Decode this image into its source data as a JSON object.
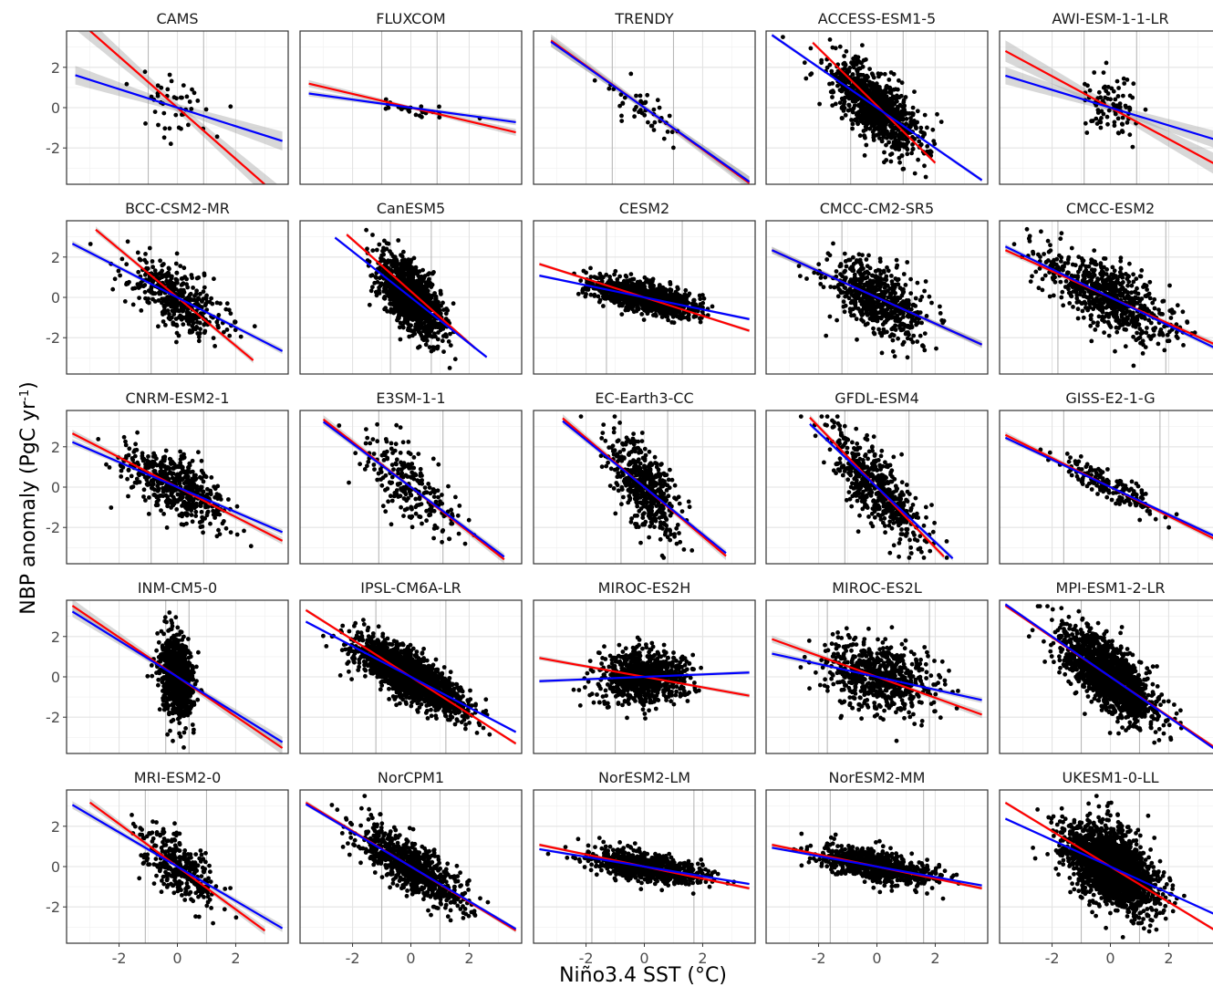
{
  "figure": {
    "ylabel_main": "NBP anomaly (PgC yr",
    "ylabel_sup": "-1",
    "ylabel_close": ")",
    "xlabel": "Niño3.4 SST (°C)"
  },
  "chart_data": {
    "type": "scatter",
    "layout": "5x5 facet grid",
    "xlim": [
      -3.8,
      3.8
    ],
    "ylim": [
      -3.8,
      3.8
    ],
    "x_ticks": [
      -2,
      0,
      2
    ],
    "y_ticks": [
      -2,
      0,
      2
    ],
    "x_tick_labels": [
      "-2",
      "0",
      "2"
    ],
    "y_tick_labels": [
      "-2",
      "0",
      "2"
    ],
    "grid": true,
    "line_colors": {
      "red": "#ff0000",
      "blue": "#0000ff"
    },
    "panels": [
      {
        "title": "CAMS",
        "n": 45,
        "xsd": 0.7,
        "noise": 0.9,
        "red": [
          -1.27,
          0.0
        ],
        "blue": [
          -0.46,
          0.0
        ],
        "red_range": [
          -3.5,
          3.6
        ],
        "blue_range": [
          -3.5,
          3.6
        ],
        "band": 0.55,
        "vlines": [
          -1.0,
          0.9
        ]
      },
      {
        "title": "FLUXCOM",
        "n": 25,
        "xsd": 0.8,
        "noise": 0.18,
        "red": [
          -0.34,
          0.0
        ],
        "blue": [
          -0.2,
          0.0
        ],
        "red_range": [
          -3.5,
          3.6
        ],
        "blue_range": [
          -3.5,
          3.6
        ],
        "band": 0.15,
        "vlines": [
          -1.0,
          0.9
        ]
      },
      {
        "title": "TRENDY",
        "n": 45,
        "xsd": 0.7,
        "noise": 0.6,
        "red": [
          -1.04,
          0.0
        ],
        "blue": [
          -1.02,
          0.0
        ],
        "red_range": [
          -3.2,
          3.6
        ],
        "blue_range": [
          -3.2,
          3.6
        ],
        "band": 0.3,
        "vlines": [
          -1.1,
          1.0
        ]
      },
      {
        "title": "ACCESS-ESM1-5",
        "n": 1000,
        "xsd": 0.75,
        "noise": 0.8,
        "red": [
          -1.42,
          0.1
        ],
        "blue": [
          -1.0,
          0.0
        ],
        "red_range": [
          -2.2,
          2.0
        ],
        "blue_range": [
          -3.6,
          3.6
        ],
        "band": 0.08,
        "vlines": [
          -0.9,
          0.9
        ]
      },
      {
        "title": "AWI-ESM-1-1-LR",
        "n": 90,
        "xsd": 0.45,
        "noise": 0.8,
        "red": [
          -0.78,
          0.0
        ],
        "blue": [
          -0.44,
          0.0
        ],
        "red_range": [
          -3.6,
          3.6
        ],
        "blue_range": [
          -3.6,
          3.6
        ],
        "band": 0.5,
        "vlines": [
          -0.9,
          0.9
        ]
      },
      {
        "title": "BCC-CSM2-MR",
        "n": 420,
        "xsd": 0.85,
        "noise": 0.75,
        "red": [
          -1.2,
          0.0
        ],
        "blue": [
          -0.74,
          0.0
        ],
        "red_range": [
          -2.8,
          2.6
        ],
        "blue_range": [
          -3.6,
          3.6
        ],
        "band": 0.15,
        "vlines": [
          -0.9,
          0.9
        ]
      },
      {
        "title": "CanESM5",
        "n": 1200,
        "xsd": 0.55,
        "noise": 0.8,
        "red": [
          -1.28,
          0.3
        ],
        "blue": [
          -1.14,
          0.0
        ],
        "red_range": [
          -2.2,
          2.2
        ],
        "blue_range": [
          -2.6,
          2.6
        ],
        "band": 0.08,
        "vlines": [
          -0.7,
          0.7
        ]
      },
      {
        "title": "CESM2",
        "n": 1100,
        "xsd": 0.9,
        "noise": 0.35,
        "red": [
          -0.46,
          0.0
        ],
        "blue": [
          -0.3,
          0.0
        ],
        "red_range": [
          -3.6,
          3.6
        ],
        "blue_range": [
          -3.6,
          3.6
        ],
        "band": 0.05,
        "vlines": [
          -1.3,
          1.3
        ]
      },
      {
        "title": "CMCC-CM2-SR5",
        "n": 620,
        "xsd": 0.85,
        "noise": 0.85,
        "red": [
          -0.65,
          0.0
        ],
        "blue": [
          -0.65,
          0.0
        ],
        "red_range": [
          -3.6,
          3.6
        ],
        "blue_range": [
          -3.6,
          3.6
        ],
        "band": 0.15,
        "vlines": [
          -1.2,
          1.2
        ]
      },
      {
        "title": "CMCC-ESM2",
        "n": 700,
        "xsd": 1.1,
        "noise": 0.8,
        "red": [
          -0.65,
          0.0
        ],
        "blue": [
          -0.7,
          0.0
        ],
        "red_range": [
          -3.6,
          3.6
        ],
        "blue_range": [
          -3.6,
          3.6
        ],
        "band": 0.12,
        "vlines": [
          -1.8,
          1.9
        ]
      },
      {
        "title": "CNRM-ESM2-1",
        "n": 520,
        "xsd": 0.85,
        "noise": 0.75,
        "red": [
          -0.74,
          0.0
        ],
        "blue": [
          -0.62,
          0.0
        ],
        "red_range": [
          -3.6,
          3.6
        ],
        "blue_range": [
          -3.6,
          3.6
        ],
        "band": 0.15,
        "vlines": [
          -0.9,
          0.9
        ]
      },
      {
        "title": "E3SM-1-1",
        "n": 230,
        "xsd": 0.85,
        "noise": 0.9,
        "red": [
          -1.12,
          0.0
        ],
        "blue": [
          -1.08,
          0.0
        ],
        "red_range": [
          -3.0,
          3.2
        ],
        "blue_range": [
          -3.0,
          3.2
        ],
        "band": 0.2,
        "vlines": [
          -1.1,
          1.1
        ]
      },
      {
        "title": "EC-Earth3-CC",
        "n": 500,
        "xsd": 0.6,
        "noise": 1.0,
        "red": [
          -1.22,
          0.0
        ],
        "blue": [
          -1.17,
          0.0
        ],
        "red_range": [
          -2.8,
          2.8
        ],
        "blue_range": [
          -2.8,
          2.8
        ],
        "band": 0.2,
        "vlines": [
          -0.8,
          0.8
        ]
      },
      {
        "title": "GFDL-ESM4",
        "n": 520,
        "xsd": 0.75,
        "noise": 0.9,
        "red": [
          -1.5,
          0.0
        ],
        "blue": [
          -1.36,
          0.0
        ],
        "red_range": [
          -2.3,
          2.3
        ],
        "blue_range": [
          -2.3,
          2.6
        ],
        "band": 0.15,
        "vlines": [
          -1.1,
          1.1
        ]
      },
      {
        "title": "GISS-E2-1-G",
        "n": 160,
        "xsd": 0.9,
        "noise": 0.35,
        "red": [
          -0.72,
          0.0
        ],
        "blue": [
          -0.68,
          0.0
        ],
        "red_range": [
          -3.6,
          3.6
        ],
        "blue_range": [
          -3.6,
          3.6
        ],
        "band": 0.12,
        "vlines": [
          -1.6,
          1.7
        ]
      },
      {
        "title": "INM-CM5-0",
        "n": 900,
        "xsd": 0.28,
        "noise": 1.0,
        "red": [
          -0.98,
          0.0
        ],
        "blue": [
          -0.9,
          0.0
        ],
        "red_range": [
          -3.6,
          3.6
        ],
        "blue_range": [
          -3.6,
          3.6
        ],
        "band": 0.3,
        "vlines": [
          -0.4,
          0.4
        ]
      },
      {
        "title": "IPSL-CM6A-LR",
        "n": 1800,
        "xsd": 0.9,
        "noise": 0.55,
        "red": [
          -0.92,
          0.0
        ],
        "blue": [
          -0.76,
          0.0
        ],
        "red_range": [
          -3.6,
          3.6
        ],
        "blue_range": [
          -3.6,
          3.6
        ],
        "band": 0.05,
        "vlines": [
          -1.2,
          1.2
        ]
      },
      {
        "title": "MIROC-ES2H",
        "n": 800,
        "xsd": 0.75,
        "noise": 0.65,
        "red": [
          -0.26,
          0.0
        ],
        "blue": [
          0.06,
          0.0
        ],
        "red_range": [
          -3.6,
          3.6
        ],
        "blue_range": [
          -3.6,
          3.6
        ],
        "band": 0.08,
        "vlines": [
          -1.0,
          1.0
        ]
      },
      {
        "title": "MIROC-ES2L",
        "n": 700,
        "xsd": 0.9,
        "noise": 0.85,
        "red": [
          -0.52,
          0.0
        ],
        "blue": [
          -0.32,
          0.0
        ],
        "red_range": [
          -3.6,
          3.6
        ],
        "blue_range": [
          -3.6,
          3.6
        ],
        "band": 0.15,
        "vlines": [
          -1.7,
          1.8
        ]
      },
      {
        "title": "MPI-ESM1-2-LR",
        "n": 1600,
        "xsd": 0.75,
        "noise": 0.8,
        "red": [
          -0.98,
          0.0
        ],
        "blue": [
          -1.0,
          0.0
        ],
        "red_range": [
          -3.6,
          3.6
        ],
        "blue_range": [
          -3.6,
          3.6
        ],
        "band": 0.06,
        "vlines": [
          -1.0,
          1.0
        ]
      },
      {
        "title": "MRI-ESM2-0",
        "n": 320,
        "xsd": 0.65,
        "noise": 0.8,
        "red": [
          -1.06,
          0.0
        ],
        "blue": [
          -0.85,
          0.0
        ],
        "red_range": [
          -3.0,
          3.0
        ],
        "blue_range": [
          -3.6,
          3.6
        ],
        "band": 0.2,
        "vlines": [
          -1.1,
          1.0
        ]
      },
      {
        "title": "NorCPM1",
        "n": 750,
        "xsd": 0.9,
        "noise": 0.65,
        "red": [
          -0.88,
          0.0
        ],
        "blue": [
          -0.86,
          0.0
        ],
        "red_range": [
          -3.6,
          3.6
        ],
        "blue_range": [
          -3.6,
          3.6
        ],
        "band": 0.08,
        "vlines": [
          -1.0,
          1.0
        ]
      },
      {
        "title": "NorESM2-LM",
        "n": 800,
        "xsd": 0.95,
        "noise": 0.35,
        "red": [
          -0.3,
          0.0
        ],
        "blue": [
          -0.24,
          0.0
        ],
        "red_range": [
          -3.6,
          3.6
        ],
        "blue_range": [
          -3.6,
          3.6
        ],
        "band": 0.05,
        "vlines": [
          -1.8,
          1.7
        ]
      },
      {
        "title": "NorESM2-MM",
        "n": 800,
        "xsd": 0.95,
        "noise": 0.35,
        "red": [
          -0.3,
          0.0
        ],
        "blue": [
          -0.26,
          0.0
        ],
        "red_range": [
          -3.6,
          3.6
        ],
        "blue_range": [
          -3.6,
          3.6
        ],
        "band": 0.05,
        "vlines": [
          -1.6,
          1.6
        ]
      },
      {
        "title": "UKESM1-0-LL",
        "n": 2200,
        "xsd": 0.75,
        "noise": 0.9,
        "red": [
          -0.88,
          0.0
        ],
        "blue": [
          -0.66,
          0.0
        ],
        "red_range": [
          -3.6,
          3.6
        ],
        "blue_range": [
          -3.6,
          3.6
        ],
        "band": 0.05,
        "vlines": [
          -1.0,
          1.0
        ]
      }
    ]
  }
}
